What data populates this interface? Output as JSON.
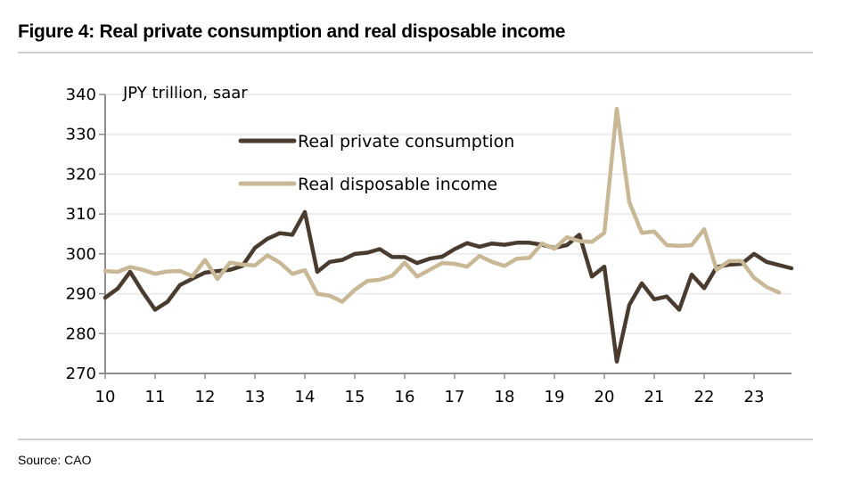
{
  "figure": {
    "title": "Figure 4: Real private consumption and real disposable income",
    "source": "Source: CAO"
  },
  "chart_data": {
    "type": "line",
    "title": "Figure 4: Real private consumption and real disposable income",
    "unit_label": "JPY trillion, saar",
    "xlabel": "",
    "ylabel": "JPY trillion, saar",
    "ylim": [
      270,
      340
    ],
    "yticks": [
      270,
      280,
      290,
      300,
      310,
      320,
      330,
      340
    ],
    "ytick_labels": [
      "270",
      "280",
      "290",
      "300",
      "310",
      "320",
      "330",
      "340"
    ],
    "xlim": [
      2010.0,
      2023.75
    ],
    "xticks": [
      2010,
      2011,
      2012,
      2013,
      2014,
      2015,
      2016,
      2017,
      2018,
      2019,
      2020,
      2021,
      2022,
      2023
    ],
    "xtick_labels": [
      "10",
      "11",
      "12",
      "13",
      "14",
      "15",
      "16",
      "17",
      "18",
      "19",
      "20",
      "21",
      "22",
      "23"
    ],
    "frequency": "quarterly",
    "start": "2010Q1",
    "grid": true,
    "legend_position": "top-center",
    "series": [
      {
        "name": "Real private consumption",
        "color": "#4a3b2f",
        "values": [
          289.0,
          291.3,
          295.5,
          290.5,
          286.0,
          288.0,
          292.2,
          293.8,
          295.3,
          295.7,
          296.0,
          297.0,
          301.5,
          303.8,
          305.2,
          304.8,
          310.5,
          295.5,
          298.0,
          298.5,
          300.0,
          300.3,
          301.2,
          299.2,
          299.2,
          297.7,
          298.8,
          299.3,
          301.2,
          302.7,
          301.8,
          302.6,
          302.3,
          302.8,
          302.8,
          302.3,
          301.5,
          302.2,
          304.8,
          294.3,
          296.8,
          273.0,
          287.2,
          292.6,
          288.6,
          289.3,
          286.0,
          294.8,
          291.4,
          296.7,
          297.3,
          297.5,
          300.0,
          298.0,
          297.2,
          296.4
        ]
      },
      {
        "name": "Real disposable income",
        "color": "#c9b896",
        "values": [
          295.7,
          295.5,
          296.7,
          296.0,
          295.0,
          295.6,
          295.7,
          294.4,
          298.5,
          293.7,
          297.8,
          297.3,
          297.1,
          299.6,
          297.8,
          295.0,
          295.9,
          290.0,
          289.5,
          288.0,
          291.0,
          293.2,
          293.5,
          294.5,
          297.8,
          294.3,
          296.0,
          297.7,
          297.5,
          296.8,
          299.5,
          298.0,
          297.0,
          298.8,
          299.0,
          302.6,
          301.3,
          304.2,
          303.2,
          303.0,
          305.3,
          336.4,
          313.0,
          305.3,
          305.6,
          302.2,
          302.0,
          302.2,
          306.2,
          296.0,
          298.2,
          298.2,
          294.0,
          291.7,
          290.3
        ]
      }
    ]
  }
}
